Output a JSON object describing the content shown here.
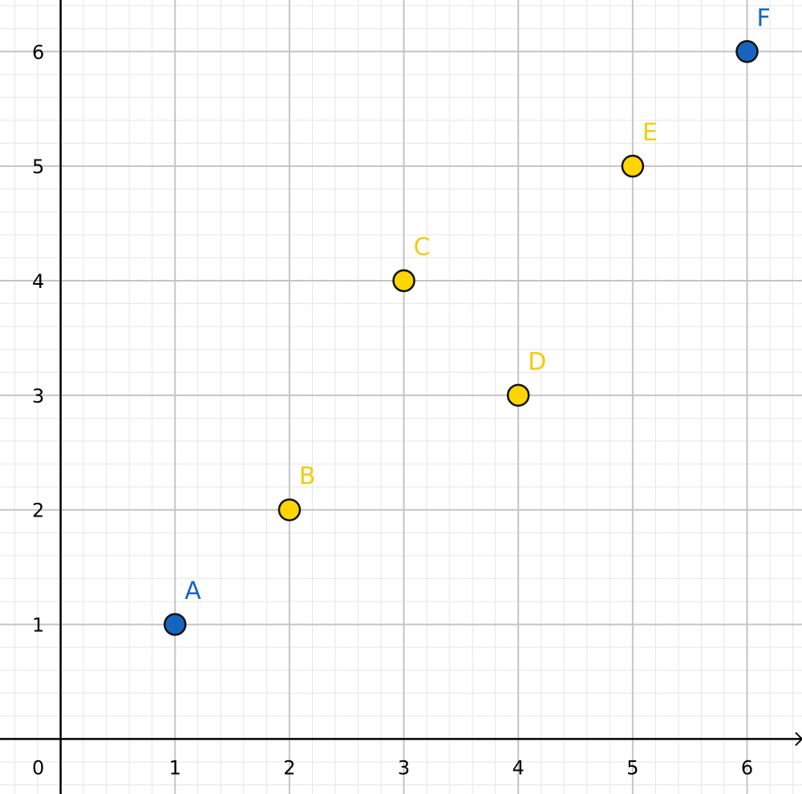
{
  "chart_data": {
    "type": "scatter",
    "title": "",
    "xlabel": "",
    "ylabel": "",
    "xlim": [
      -0.53,
      6.48
    ],
    "ylim": [
      -0.48,
      6.45
    ],
    "grid": true,
    "origin_label": "0",
    "x_ticks": [
      1,
      2,
      3,
      4,
      5,
      6
    ],
    "y_ticks": [
      1,
      2,
      3,
      4,
      5,
      6
    ],
    "x_tick_labels": [
      "1",
      "2",
      "3",
      "4",
      "5",
      "6"
    ],
    "y_tick_labels": [
      "1",
      "2",
      "3",
      "4",
      "5",
      "6"
    ],
    "points": [
      {
        "label": "A",
        "x": 1,
        "y": 1,
        "color": "#1565c0"
      },
      {
        "label": "B",
        "x": 2,
        "y": 2,
        "color": "#ffd500"
      },
      {
        "label": "C",
        "x": 3,
        "y": 4,
        "color": "#ffd500"
      },
      {
        "label": "D",
        "x": 4,
        "y": 3,
        "color": "#ffd500"
      },
      {
        "label": "E",
        "x": 5,
        "y": 5,
        "color": "#ffd500"
      },
      {
        "label": "F",
        "x": 6,
        "y": 6,
        "color": "#1565c0"
      }
    ],
    "colors": {
      "major_grid": "#c4c4c4",
      "minor_grid": "#e6e6e6",
      "axis": "#000000",
      "point_outline": "#111111",
      "label_blue": "#1565c0",
      "label_yellow": "#f3cc0b"
    }
  }
}
